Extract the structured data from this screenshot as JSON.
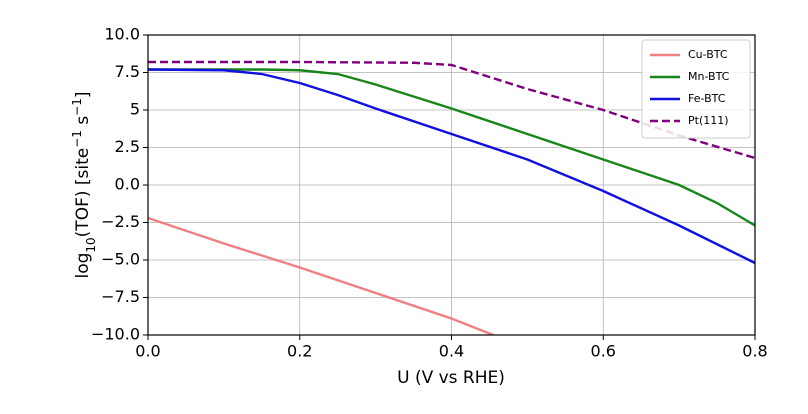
{
  "chart_data": {
    "type": "line",
    "xlabel": "U (V vs RHE)",
    "ylabel": [
      "log",
      "10",
      "(TOF) [site",
      "−1",
      " s",
      "−1",
      "]"
    ],
    "xlim": [
      0.0,
      0.8
    ],
    "ylim": [
      -10.0,
      10.0
    ],
    "xticks": [
      {
        "value": 0.0,
        "label": "0.0"
      },
      0.2,
      0.4,
      0.6,
      0.8
    ],
    "yticks": [
      {
        "value": -10.0,
        "label": "−10.0"
      },
      {
        "value": -7.5,
        "label": "−7.5"
      },
      {
        "value": -5.0,
        "label": "−5.0"
      },
      {
        "value": -2.5,
        "label": "−2.5"
      },
      {
        "value": 0.0,
        "label": "0.0"
      },
      2.5,
      5.0,
      7.5,
      {
        "value": 10.0,
        "label": "10.0"
      }
    ],
    "grid": true,
    "legend": "upper right",
    "series": [
      {
        "name": "Cu-BTC",
        "color": "#f08080",
        "dashed": false,
        "x": [
          0.0,
          0.1,
          0.2,
          0.3,
          0.4,
          0.455
        ],
        "values": [
          -2.2,
          -3.9,
          -5.5,
          -7.2,
          -8.9,
          -10.0
        ]
      },
      {
        "name": "Mn-BTC",
        "color": "#17851a",
        "dashed": false,
        "x": [
          0.0,
          0.1,
          0.15,
          0.2,
          0.25,
          0.3,
          0.35,
          0.4,
          0.5,
          0.6,
          0.7,
          0.75,
          0.8
        ],
        "values": [
          7.7,
          7.7,
          7.7,
          7.65,
          7.4,
          6.7,
          5.9,
          5.1,
          3.4,
          1.7,
          0.0,
          -1.2,
          -2.7
        ]
      },
      {
        "name": "Fe-BTC",
        "color": "#1010e0",
        "dashed": false,
        "x": [
          0.0,
          0.1,
          0.15,
          0.2,
          0.25,
          0.3,
          0.4,
          0.5,
          0.6,
          0.7,
          0.8
        ],
        "values": [
          7.7,
          7.65,
          7.4,
          6.8,
          6.0,
          5.1,
          3.4,
          1.7,
          -0.4,
          -2.7,
          -5.2
        ]
      },
      {
        "name": "Pt(111)",
        "color": "#800080",
        "dashed": true,
        "x": [
          0.0,
          0.2,
          0.35,
          0.4,
          0.45,
          0.5,
          0.6,
          0.7,
          0.8
        ],
        "values": [
          8.2,
          8.2,
          8.15,
          8.0,
          7.2,
          6.4,
          5.0,
          3.3,
          1.8
        ]
      }
    ]
  }
}
